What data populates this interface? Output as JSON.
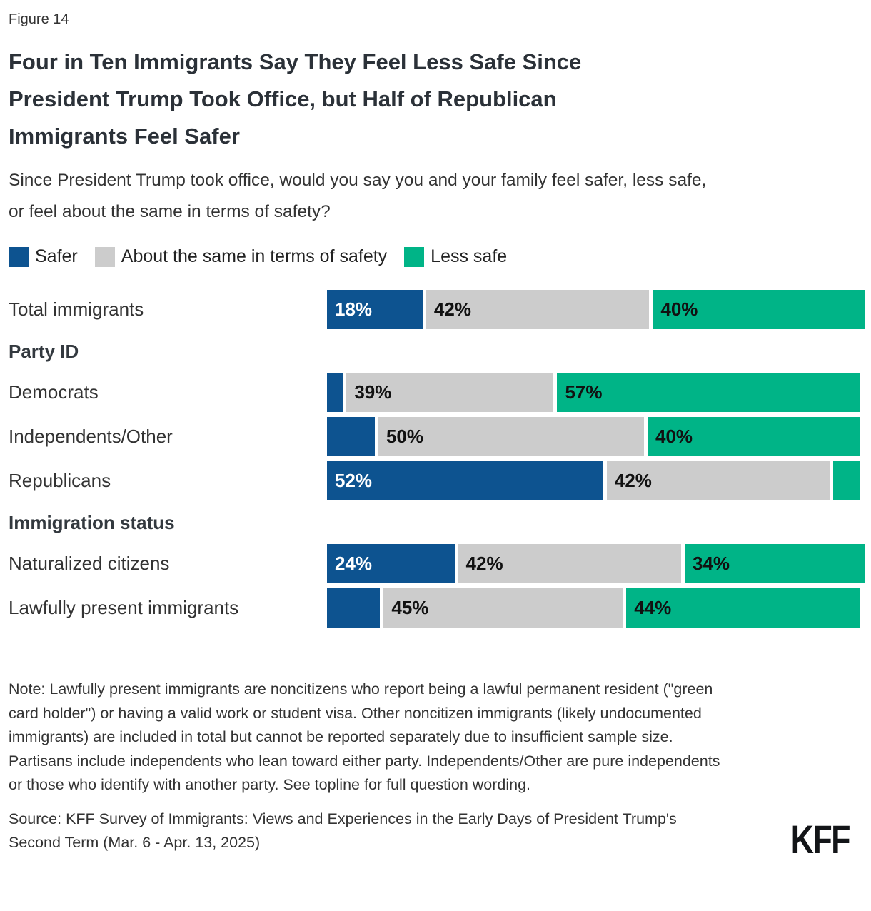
{
  "figure_label": "Figure 14",
  "title": "Four in Ten Immigrants Say They Feel Less Safe Since President Trump Took Office, but Half of Republican Immigrants Feel Safer",
  "subtitle": "Since President Trump took office, would you say you and your family feel safer, less safe, or feel about the same in terms of safety?",
  "legend": {
    "items": [
      {
        "label": "Safer",
        "color": "#0D5390"
      },
      {
        "label": "About the same in terms of safety",
        "color": "#CCCCCC"
      },
      {
        "label": "Less safe",
        "color": "#00B487"
      }
    ]
  },
  "chart_data": {
    "type": "bar",
    "orientation": "horizontal",
    "stacked": true,
    "unit": "percent",
    "xlim": [
      0,
      100
    ],
    "grid": false,
    "legend_position": "top",
    "series": [
      "Safer",
      "About the same in terms of safety",
      "Less safe"
    ],
    "colors": [
      "#0D5390",
      "#CCCCCC",
      "#00B487"
    ],
    "section_headers": [
      "Party ID",
      "Immigration status"
    ],
    "rows": [
      {
        "label": "Total immigrants",
        "values": [
          18,
          42,
          40
        ],
        "display": [
          "18%",
          "42%",
          "40%"
        ]
      },
      {
        "label": "Democrats",
        "values": [
          3,
          39,
          57
        ],
        "display": [
          "",
          "39%",
          "57%"
        ]
      },
      {
        "label": "Independents/Other",
        "values": [
          9,
          50,
          40
        ],
        "display": [
          "",
          "50%",
          "40%"
        ]
      },
      {
        "label": "Republicans",
        "values": [
          52,
          42,
          5
        ],
        "display": [
          "52%",
          "42%",
          ""
        ]
      },
      {
        "label": "Naturalized citizens",
        "values": [
          24,
          42,
          34
        ],
        "display": [
          "24%",
          "42%",
          "34%"
        ]
      },
      {
        "label": "Lawfully present immigrants",
        "values": [
          10,
          45,
          44
        ],
        "display": [
          "",
          "45%",
          "44%"
        ]
      }
    ]
  },
  "note": "Note: Lawfully present immigrants are noncitizens who report being a lawful permanent resident (\"green card holder\") or having a valid work or student visa. Other noncitizen immigrants (likely undocumented immigrants) are included in total but cannot be reported separately due to insufficient sample size. Partisans include independents who lean toward either party. Independents/Other are pure independents or those who identify with another party. See topline for full question wording.",
  "source": "Source: KFF Survey of Immigrants: Views and Experiences in the Early Days of President Trump's Second Term (Mar. 6 - Apr. 13, 2025)",
  "logo_text": "KFF"
}
